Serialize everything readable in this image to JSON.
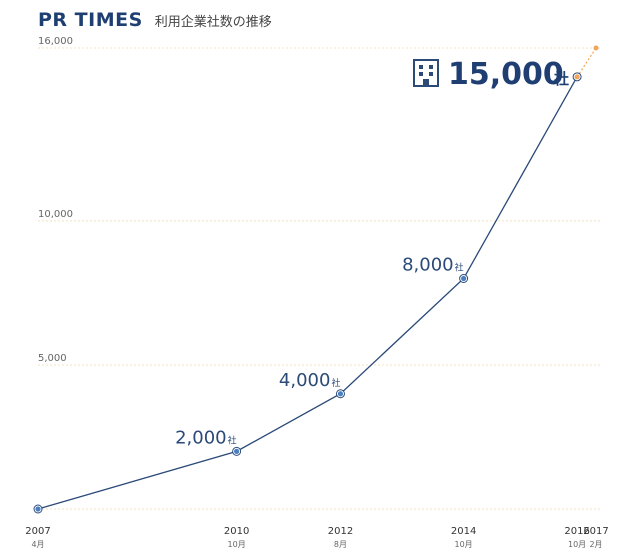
{
  "header": {
    "logo": "PR TIMES",
    "subtitle": "利用企業社数の推移"
  },
  "colors": {
    "line": "#2b4a78",
    "point_fill": "#4a7fc1",
    "projection": "#f0a65a",
    "grid": "#f2e3c4"
  },
  "icon": "office-building-icon",
  "chart_data": {
    "type": "line",
    "title": "利用企業社数の推移",
    "ylim": [
      0,
      16000
    ],
    "yticks": [
      {
        "value": 16000,
        "label": "16,000"
      },
      {
        "value": 10000,
        "label": "10,000"
      },
      {
        "value": 5000,
        "label": "5,000"
      }
    ],
    "xlim": [
      2007.25,
      2017.083
    ],
    "xticks": [
      {
        "x": 2007.25,
        "year": "2007",
        "month": "4月"
      },
      {
        "x": 2010.75,
        "year": "2010",
        "month": "10月"
      },
      {
        "x": 2012.58,
        "year": "2012",
        "month": "8月"
      },
      {
        "x": 2014.75,
        "year": "2014",
        "month": "10月"
      },
      {
        "x": 2016.75,
        "year": "2016",
        "month": "10月"
      },
      {
        "x": 2017.083,
        "year": "2017",
        "month": "2月"
      }
    ],
    "points": [
      {
        "x": 2007.25,
        "y": 0,
        "label": "",
        "unit": ""
      },
      {
        "x": 2010.75,
        "y": 2000,
        "label": "2,000",
        "unit": "社"
      },
      {
        "x": 2012.58,
        "y": 4000,
        "label": "4,000",
        "unit": "社"
      },
      {
        "x": 2014.75,
        "y": 8000,
        "label": "8,000",
        "unit": "社"
      },
      {
        "x": 2016.75,
        "y": 15000,
        "label": "15,000",
        "unit": "社"
      }
    ],
    "projection": {
      "x": 2017.083,
      "y": 16000
    },
    "grid": true
  }
}
